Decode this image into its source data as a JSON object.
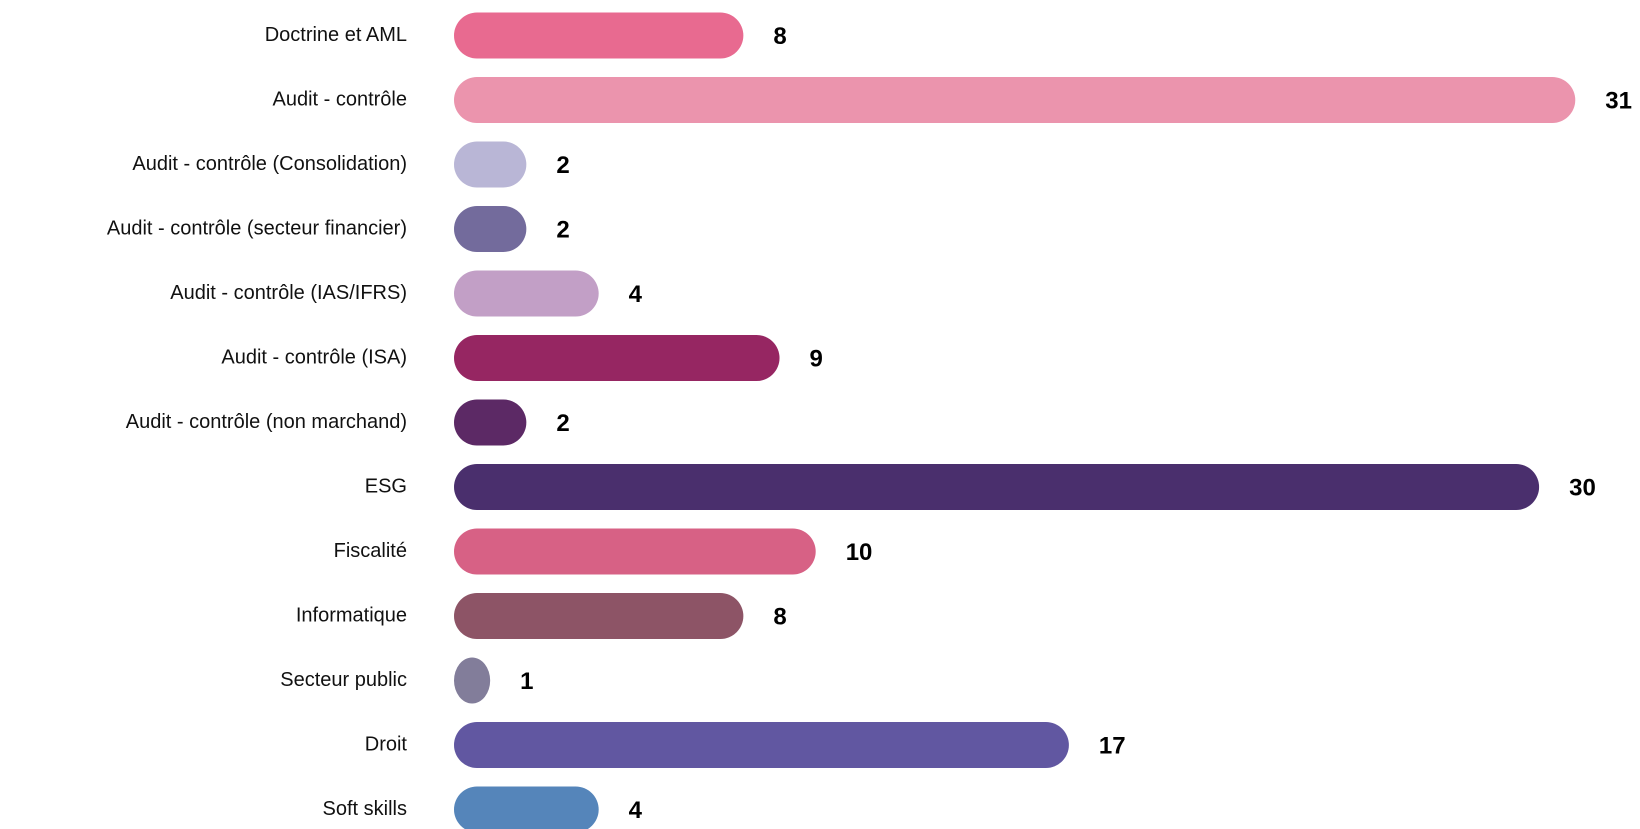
{
  "chart_data": {
    "type": "bar",
    "orientation": "horizontal",
    "categories": [
      "Doctrine et AML",
      "Audit - contrôle",
      "Audit - contrôle (Consolidation)",
      "Audit - contrôle (secteur financier)",
      "Audit - contrôle (IAS/IFRS)",
      "Audit - contrôle (ISA)",
      "Audit - contrôle (non marchand)",
      "ESG",
      "Fiscalité",
      "Informatique",
      "Secteur public",
      "Droit",
      "Soft skills"
    ],
    "values": [
      8,
      31,
      2,
      2,
      4,
      9,
      2,
      30,
      10,
      8,
      1,
      17,
      4
    ],
    "colors": [
      "#e86a90",
      "#eb94ad",
      "#b9b6d6",
      "#736b9c",
      "#c29fc6",
      "#962662",
      "#5c2965",
      "#4a2f6d",
      "#d76185",
      "#8d5466",
      "#827d9a",
      "#6157a1",
      "#5585ba"
    ]
  }
}
